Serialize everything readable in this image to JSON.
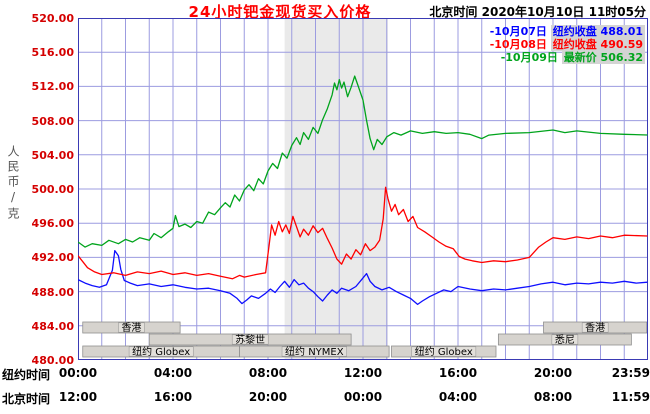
{
  "header": {
    "title": "24小时钯金现货买入价格",
    "timestamp_label": "北京时间",
    "timestamp": "2020年10月10日 11时05分"
  },
  "unit_label": "人民币/克",
  "legend": {
    "items": [
      {
        "date": "10月07日",
        "label": "纽约收盘",
        "value": "488.01",
        "color": "#0000ff"
      },
      {
        "date": "10月08日",
        "label": "纽约收盘",
        "value": "490.59",
        "color": "#ff0000"
      },
      {
        "date": "10月09日",
        "label": "最新价",
        "value": "506.32",
        "color": "#00a41c"
      }
    ]
  },
  "axes": {
    "y_ticks": [
      "520.00",
      "516.00",
      "512.00",
      "508.00",
      "504.00",
      "500.00",
      "496.00",
      "492.00",
      "488.00",
      "484.00",
      "480.00"
    ],
    "x_rows": [
      {
        "label": "纽约时间",
        "ticks": [
          "00:00",
          "04:00",
          "08:00",
          "12:00",
          "16:00",
          "20:00",
          "23:59"
        ]
      },
      {
        "label": "北京时间",
        "ticks": [
          "12:00",
          "16:00",
          "20:00",
          "00:00",
          "04:00",
          "08:00",
          "11:59"
        ]
      }
    ]
  },
  "colors": {
    "grid": "#9c9ce0",
    "plot_border": "#3a3ab4",
    "band": "#eaeaea",
    "session_fill": "#d6d3ce",
    "session_border": "#8f8f8f",
    "session_chip": "#e3e0db",
    "y_label": "#d40000",
    "title": "#fe0000"
  },
  "chart_data": {
    "type": "line",
    "title": "24小时钯金现货买入价格 (Palladium spot bid, 24h)",
    "x_unit": "hour, New York time",
    "ylabel": "人民币/克",
    "x_range": [
      0,
      24
    ],
    "y_range": [
      480,
      520
    ],
    "y_tick_step": 4,
    "x_tick_step_hours": 4,
    "grid": true,
    "legend_position": "top-right",
    "floor_session_band": {
      "start": 8.7,
      "end": 13.05
    },
    "sessions": [
      {
        "label": "香港",
        "row": 1,
        "start": 0.2,
        "end": 4.3
      },
      {
        "label": "香港",
        "row": 1,
        "start": 19.6,
        "end": 23.95
      },
      {
        "label": "苏黎世",
        "row": 2,
        "start": 3.0,
        "end": 11.5
      },
      {
        "label": "悉尼",
        "row": 2,
        "start": 17.7,
        "end": 23.3
      },
      {
        "label": "纽约 Globex",
        "row": 3,
        "start": 0.2,
        "end": 6.8
      },
      {
        "label": "纽约 NYMEX",
        "row": 3,
        "start": 6.8,
        "end": 13.1
      },
      {
        "label": "纽约 Globex",
        "row": 3,
        "start": 13.2,
        "end": 17.6
      }
    ],
    "series": [
      {
        "name": "10月07日",
        "close_label": "纽约收盘",
        "close_value": 488.01,
        "color": "#0f0fff",
        "points": [
          [
            0,
            489.4
          ],
          [
            0.3,
            489.0
          ],
          [
            0.6,
            488.7
          ],
          [
            0.9,
            488.5
          ],
          [
            1.2,
            488.8
          ],
          [
            1.45,
            490.5
          ],
          [
            1.55,
            492.8
          ],
          [
            1.7,
            492.2
          ],
          [
            1.8,
            490.6
          ],
          [
            1.95,
            489.3
          ],
          [
            2.2,
            489.0
          ],
          [
            2.5,
            488.7
          ],
          [
            3,
            488.9
          ],
          [
            3.5,
            488.6
          ],
          [
            4,
            488.8
          ],
          [
            4.5,
            488.5
          ],
          [
            5,
            488.3
          ],
          [
            5.5,
            488.4
          ],
          [
            6,
            488.1
          ],
          [
            6.4,
            487.8
          ],
          [
            6.7,
            487.2
          ],
          [
            6.9,
            486.6
          ],
          [
            7.1,
            487.0
          ],
          [
            7.3,
            487.5
          ],
          [
            7.6,
            487.2
          ],
          [
            7.9,
            487.8
          ],
          [
            8.1,
            488.3
          ],
          [
            8.3,
            487.9
          ],
          [
            8.5,
            488.6
          ],
          [
            8.7,
            489.2
          ],
          [
            8.9,
            488.5
          ],
          [
            9.1,
            489.4
          ],
          [
            9.3,
            488.8
          ],
          [
            9.5,
            489.0
          ],
          [
            9.7,
            488.4
          ],
          [
            9.9,
            488.0
          ],
          [
            10.1,
            487.4
          ],
          [
            10.3,
            486.9
          ],
          [
            10.5,
            487.6
          ],
          [
            10.7,
            488.2
          ],
          [
            10.9,
            487.8
          ],
          [
            11.1,
            488.4
          ],
          [
            11.4,
            488.1
          ],
          [
            11.7,
            488.6
          ],
          [
            12,
            489.6
          ],
          [
            12.15,
            490.1
          ],
          [
            12.3,
            489.2
          ],
          [
            12.5,
            488.6
          ],
          [
            12.8,
            488.2
          ],
          [
            13.1,
            488.5
          ],
          [
            13.4,
            488.0
          ],
          [
            13.7,
            487.6
          ],
          [
            14,
            487.2
          ],
          [
            14.3,
            486.5
          ],
          [
            14.5,
            486.9
          ],
          [
            14.8,
            487.4
          ],
          [
            15.1,
            487.8
          ],
          [
            15.4,
            488.2
          ],
          [
            15.7,
            488.0
          ],
          [
            16,
            488.6
          ],
          [
            16.5,
            488.3
          ],
          [
            17,
            488.1
          ],
          [
            17.5,
            488.3
          ],
          [
            18,
            488.2
          ],
          [
            18.5,
            488.4
          ],
          [
            19,
            488.6
          ],
          [
            19.5,
            488.9
          ],
          [
            20,
            489.1
          ],
          [
            20.5,
            488.8
          ],
          [
            21,
            489.0
          ],
          [
            21.5,
            488.9
          ],
          [
            22,
            489.1
          ],
          [
            22.5,
            489.0
          ],
          [
            23,
            489.2
          ],
          [
            23.5,
            489.0
          ],
          [
            23.98,
            489.1
          ]
        ]
      },
      {
        "name": "10月08日",
        "close_label": "纽约收盘",
        "close_value": 490.59,
        "color": "#ff0000",
        "points": [
          [
            0,
            492.2
          ],
          [
            0.2,
            491.5
          ],
          [
            0.4,
            490.8
          ],
          [
            0.7,
            490.3
          ],
          [
            1,
            490.0
          ],
          [
            1.5,
            490.2
          ],
          [
            2,
            489.9
          ],
          [
            2.5,
            490.3
          ],
          [
            3,
            490.1
          ],
          [
            3.5,
            490.4
          ],
          [
            4,
            490.0
          ],
          [
            4.5,
            490.2
          ],
          [
            5,
            489.9
          ],
          [
            5.5,
            490.1
          ],
          [
            6,
            489.8
          ],
          [
            6.5,
            489.5
          ],
          [
            6.8,
            489.9
          ],
          [
            7,
            489.7
          ],
          [
            7.5,
            490.0
          ],
          [
            7.9,
            490.2
          ],
          [
            8.05,
            493.5
          ],
          [
            8.15,
            495.8
          ],
          [
            8.3,
            494.6
          ],
          [
            8.45,
            496.2
          ],
          [
            8.6,
            495.0
          ],
          [
            8.75,
            495.8
          ],
          [
            8.9,
            494.8
          ],
          [
            9.05,
            496.8
          ],
          [
            9.2,
            495.6
          ],
          [
            9.35,
            494.4
          ],
          [
            9.5,
            495.3
          ],
          [
            9.7,
            494.6
          ],
          [
            9.9,
            495.7
          ],
          [
            10.1,
            494.9
          ],
          [
            10.3,
            495.4
          ],
          [
            10.5,
            494.2
          ],
          [
            10.7,
            493.1
          ],
          [
            10.9,
            491.8
          ],
          [
            11.1,
            491.2
          ],
          [
            11.3,
            492.4
          ],
          [
            11.5,
            491.8
          ],
          [
            11.7,
            492.9
          ],
          [
            11.9,
            492.3
          ],
          [
            12.1,
            493.6
          ],
          [
            12.3,
            492.8
          ],
          [
            12.5,
            493.2
          ],
          [
            12.7,
            494.0
          ],
          [
            12.85,
            496.5
          ],
          [
            12.95,
            500.2
          ],
          [
            13.05,
            498.9
          ],
          [
            13.2,
            497.4
          ],
          [
            13.35,
            498.2
          ],
          [
            13.5,
            497.0
          ],
          [
            13.7,
            497.6
          ],
          [
            13.9,
            496.2
          ],
          [
            14.1,
            496.8
          ],
          [
            14.3,
            495.5
          ],
          [
            14.6,
            495.0
          ],
          [
            14.9,
            494.4
          ],
          [
            15.2,
            493.8
          ],
          [
            15.5,
            493.3
          ],
          [
            15.8,
            493.0
          ],
          [
            16.05,
            492.1
          ],
          [
            16.3,
            491.8
          ],
          [
            16.6,
            491.6
          ],
          [
            17,
            491.4
          ],
          [
            17.5,
            491.6
          ],
          [
            18,
            491.5
          ],
          [
            18.5,
            491.7
          ],
          [
            19,
            492.0
          ],
          [
            19.4,
            493.2
          ],
          [
            19.7,
            493.8
          ],
          [
            20,
            494.3
          ],
          [
            20.5,
            494.1
          ],
          [
            21,
            494.4
          ],
          [
            21.5,
            494.2
          ],
          [
            22,
            494.5
          ],
          [
            22.5,
            494.3
          ],
          [
            23,
            494.6
          ],
          [
            23.98,
            494.5
          ]
        ]
      },
      {
        "name": "10月09日",
        "close_label": "最新价",
        "close_value": 506.32,
        "color": "#00a41c",
        "points": [
          [
            0,
            493.8
          ],
          [
            0.3,
            493.2
          ],
          [
            0.6,
            493.6
          ],
          [
            1,
            493.4
          ],
          [
            1.3,
            494.0
          ],
          [
            1.7,
            493.6
          ],
          [
            2,
            494.1
          ],
          [
            2.3,
            493.8
          ],
          [
            2.6,
            494.3
          ],
          [
            3,
            494.0
          ],
          [
            3.2,
            494.8
          ],
          [
            3.5,
            494.3
          ],
          [
            3.8,
            495.0
          ],
          [
            4,
            495.4
          ],
          [
            4.1,
            496.9
          ],
          [
            4.25,
            495.6
          ],
          [
            4.5,
            495.9
          ],
          [
            4.75,
            495.5
          ],
          [
            5,
            496.2
          ],
          [
            5.25,
            496.0
          ],
          [
            5.5,
            497.3
          ],
          [
            5.75,
            497.0
          ],
          [
            6,
            497.8
          ],
          [
            6.2,
            498.4
          ],
          [
            6.4,
            497.9
          ],
          [
            6.6,
            499.3
          ],
          [
            6.8,
            498.6
          ],
          [
            7,
            499.9
          ],
          [
            7.2,
            500.5
          ],
          [
            7.4,
            499.8
          ],
          [
            7.6,
            501.2
          ],
          [
            7.8,
            500.6
          ],
          [
            8,
            502.1
          ],
          [
            8.2,
            503.0
          ],
          [
            8.4,
            502.4
          ],
          [
            8.6,
            504.2
          ],
          [
            8.8,
            503.6
          ],
          [
            9,
            505.1
          ],
          [
            9.2,
            506.0
          ],
          [
            9.35,
            505.2
          ],
          [
            9.5,
            506.6
          ],
          [
            9.7,
            505.8
          ],
          [
            9.9,
            507.2
          ],
          [
            10.1,
            506.5
          ],
          [
            10.3,
            508.1
          ],
          [
            10.5,
            509.4
          ],
          [
            10.7,
            511.0
          ],
          [
            10.8,
            512.4
          ],
          [
            10.9,
            511.6
          ],
          [
            11,
            512.8
          ],
          [
            11.1,
            511.8
          ],
          [
            11.2,
            512.5
          ],
          [
            11.35,
            510.8
          ],
          [
            11.5,
            511.9
          ],
          [
            11.65,
            513.2
          ],
          [
            11.8,
            512.0
          ],
          [
            12,
            510.4
          ],
          [
            12.15,
            508.0
          ],
          [
            12.3,
            505.9
          ],
          [
            12.45,
            504.6
          ],
          [
            12.6,
            505.8
          ],
          [
            12.8,
            505.2
          ],
          [
            13,
            506.1
          ],
          [
            13.3,
            506.6
          ],
          [
            13.6,
            506.3
          ],
          [
            14,
            506.8
          ],
          [
            14.5,
            506.5
          ],
          [
            15,
            506.7
          ],
          [
            15.5,
            506.5
          ],
          [
            16,
            506.6
          ],
          [
            16.5,
            506.4
          ],
          [
            17,
            505.9
          ],
          [
            17.3,
            506.3
          ],
          [
            18,
            506.5
          ],
          [
            19,
            506.6
          ],
          [
            20,
            506.9
          ],
          [
            20.5,
            506.6
          ],
          [
            21,
            506.8
          ],
          [
            22,
            506.5
          ],
          [
            23,
            506.4
          ],
          [
            23.98,
            506.32
          ]
        ]
      }
    ]
  }
}
